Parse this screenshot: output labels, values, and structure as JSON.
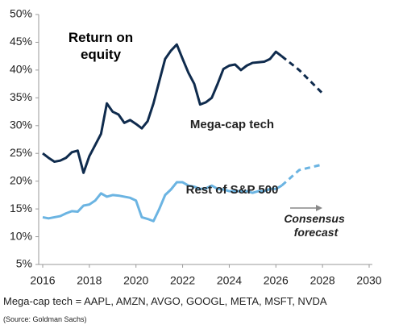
{
  "chart_data": {
    "type": "line",
    "title": "Return on equity",
    "xlim": [
      2016,
      2030
    ],
    "xticks": [
      2016,
      2018,
      2020,
      2022,
      2024,
      2026,
      2028,
      2030
    ],
    "ylim": [
      5,
      50
    ],
    "yticks": [
      {
        "value": 5,
        "label": "5%"
      },
      {
        "value": 10,
        "label": "10%"
      },
      {
        "value": 15,
        "label": "15%"
      },
      {
        "value": 20,
        "label": "20%"
      },
      {
        "value": 25,
        "label": "25%"
      },
      {
        "value": 30,
        "label": "30%"
      },
      {
        "value": 35,
        "label": "35%"
      },
      {
        "value": 40,
        "label": "40%"
      },
      {
        "value": 45,
        "label": "45%"
      },
      {
        "value": 50,
        "label": "50%"
      }
    ],
    "grid": false,
    "forecast_start": 2026.25,
    "series": [
      {
        "name": "Mega-cap tech",
        "color": "#0f2b4d",
        "x": [
          2016,
          2016.25,
          2016.5,
          2016.75,
          2017,
          2017.25,
          2017.5,
          2017.75,
          2018,
          2018.25,
          2018.5,
          2018.75,
          2019,
          2019.25,
          2019.5,
          2019.75,
          2020,
          2020.25,
          2020.5,
          2020.75,
          2021,
          2021.25,
          2021.5,
          2021.75,
          2022,
          2022.25,
          2022.5,
          2022.75,
          2023,
          2023.25,
          2023.5,
          2023.75,
          2024,
          2024.25,
          2024.5,
          2024.75,
          2025,
          2025.25,
          2025.5,
          2025.75,
          2026,
          2026.25,
          2027,
          2028
        ],
        "values": [
          25,
          24.2,
          23.5,
          23.7,
          24.2,
          25.2,
          25.5,
          21.5,
          24.5,
          26.5,
          28.5,
          34,
          32.5,
          32,
          30.5,
          31,
          30.3,
          29.5,
          30.8,
          34,
          38,
          42,
          43.5,
          44.6,
          42,
          39.5,
          37.5,
          33.8,
          34.2,
          35,
          37.5,
          40.2,
          40.8,
          41,
          40,
          40.8,
          41.3,
          41.4,
          41.5,
          42,
          43.3,
          42.5,
          40,
          35.8
        ]
      },
      {
        "name": "Rest of S&P 500",
        "color": "#6bb4e2",
        "x": [
          2016,
          2016.25,
          2016.5,
          2016.75,
          2017,
          2017.25,
          2017.5,
          2017.75,
          2018,
          2018.25,
          2018.5,
          2018.75,
          2019,
          2019.25,
          2019.5,
          2019.75,
          2020,
          2020.25,
          2020.5,
          2020.75,
          2021,
          2021.25,
          2021.5,
          2021.75,
          2022,
          2022.25,
          2022.5,
          2022.75,
          2023,
          2023.25,
          2023.5,
          2023.75,
          2024,
          2024.25,
          2024.5,
          2024.75,
          2025,
          2025.25,
          2025.5,
          2025.75,
          2026,
          2026.25,
          2027,
          2028
        ],
        "values": [
          13.5,
          13.3,
          13.5,
          13.7,
          14.2,
          14.6,
          14.5,
          15.6,
          15.8,
          16.5,
          17.8,
          17.2,
          17.5,
          17.4,
          17.2,
          17,
          16.5,
          13.5,
          13.2,
          12.8,
          15,
          17.5,
          18.5,
          19.8,
          19.8,
          19.2,
          19,
          18.6,
          18.7,
          19.2,
          18.6,
          18.5,
          18.2,
          18.2,
          18.2,
          18.2,
          17.9,
          18.2,
          18.2,
          18.6,
          18.6,
          19.2,
          22,
          23
        ]
      }
    ],
    "annotation": "Consensus forecast"
  },
  "footnote": "Mega-cap tech = AAPL, AMZN, AVGO, GOOGL, META, MSFT, NVDA",
  "source": "(Source: Goldman Sachs)"
}
